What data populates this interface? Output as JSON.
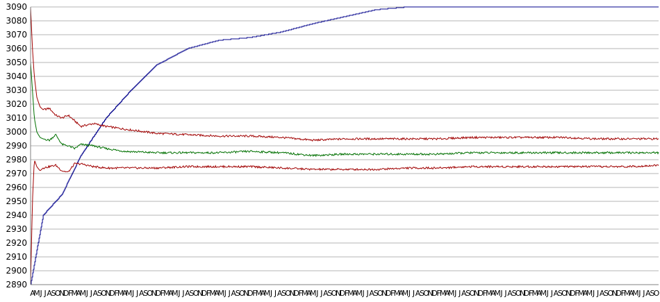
{
  "chart_data": {
    "type": "line",
    "title": "",
    "xlabel": "",
    "ylabel": "",
    "ylim": [
      2890,
      3090
    ],
    "y_ticks": [
      3090,
      3080,
      3070,
      3060,
      3050,
      3040,
      3030,
      3020,
      3010,
      3000,
      2990,
      2980,
      2970,
      2960,
      2950,
      2940,
      2930,
      2920,
      2910,
      2900,
      2890
    ],
    "grid": true,
    "legend": "none",
    "x_tick_label_pattern": [
      "A",
      "M",
      "J",
      "J",
      "A",
      "S",
      "O",
      "N",
      "D",
      "F",
      "M"
    ],
    "x_tick_count": 150,
    "series": [
      {
        "color": "#00008b",
        "x": [
          0,
          0.02,
          0.05,
          0.08,
          0.12,
          0.16,
          0.2,
          0.25,
          0.3,
          0.35,
          0.4,
          0.45,
          0.5,
          0.55,
          0.6,
          0.7,
          0.8,
          1.0
        ],
        "values": [
          2890,
          2940,
          2955,
          2983,
          3010,
          3030,
          3048,
          3060,
          3066,
          3068,
          3072,
          3078,
          3083,
          3088,
          3090,
          3090,
          3090,
          3090
        ]
      },
      {
        "color": "#a00000",
        "x": [
          0,
          0.003,
          0.006,
          0.01,
          0.015,
          0.02,
          0.03,
          0.04,
          0.05,
          0.06,
          0.07,
          0.08,
          0.1,
          0.12,
          0.15,
          0.2,
          0.25,
          0.3,
          0.35,
          0.4,
          0.45,
          0.5,
          0.55,
          0.6,
          0.65,
          0.7,
          0.75,
          0.8,
          0.85,
          0.9,
          0.95,
          1.0
        ],
        "values": [
          3090,
          3060,
          3040,
          3025,
          3018,
          3016,
          3017,
          3012,
          3010,
          3012,
          3008,
          3004,
          3006,
          3004,
          3002,
          2999,
          2998,
          2997,
          2997,
          2996,
          2994,
          2995,
          2995,
          2995,
          2995,
          2996,
          2996,
          2996,
          2996,
          2995,
          2995,
          2995
        ]
      },
      {
        "color": "#007000",
        "x": [
          0,
          0.003,
          0.006,
          0.01,
          0.015,
          0.02,
          0.03,
          0.04,
          0.05,
          0.06,
          0.07,
          0.08,
          0.1,
          0.12,
          0.15,
          0.2,
          0.25,
          0.3,
          0.35,
          0.4,
          0.45,
          0.5,
          0.55,
          0.6,
          0.65,
          0.7,
          0.75,
          0.8,
          0.85,
          0.9,
          0.95,
          1.0
        ],
        "values": [
          3050,
          3030,
          3010,
          3000,
          2996,
          2995,
          2994,
          2998,
          2991,
          2990,
          2988,
          2991,
          2990,
          2988,
          2986,
          2985,
          2985,
          2985,
          2986,
          2985,
          2983,
          2984,
          2984,
          2984,
          2984,
          2985,
          2985,
          2985,
          2985,
          2985,
          2985,
          2985
        ]
      },
      {
        "color": "#a00000",
        "x": [
          0,
          0.003,
          0.006,
          0.01,
          0.015,
          0.02,
          0.03,
          0.04,
          0.05,
          0.06,
          0.07,
          0.08,
          0.1,
          0.12,
          0.15,
          0.2,
          0.25,
          0.3,
          0.35,
          0.4,
          0.45,
          0.5,
          0.55,
          0.6,
          0.65,
          0.7,
          0.75,
          0.8,
          0.85,
          0.9,
          0.95,
          1.0
        ],
        "values": [
          2890,
          2950,
          2980,
          2975,
          2972,
          2974,
          2975,
          2976,
          2972,
          2971,
          2977,
          2977,
          2975,
          2974,
          2974,
          2974,
          2975,
          2975,
          2975,
          2974,
          2973,
          2973,
          2973,
          2974,
          2974,
          2975,
          2975,
          2975,
          2975,
          2975,
          2975,
          2976
        ]
      }
    ]
  }
}
